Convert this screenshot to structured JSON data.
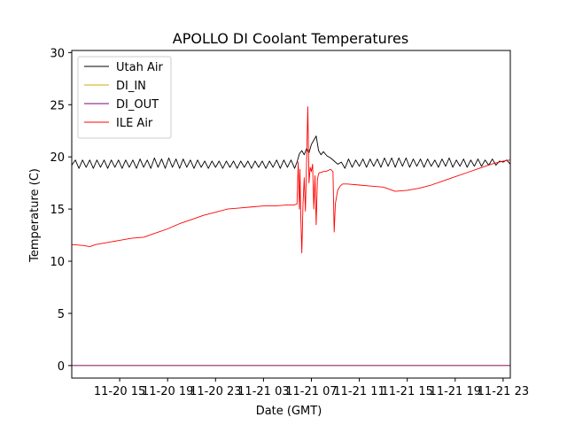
{
  "chart_data": {
    "type": "line",
    "title": "APOLLO DI Coolant Temperatures",
    "xlabel": "Date (GMT)",
    "ylabel": "Temperature (C)",
    "x_unit": "hours since 11-20 11:00 GMT",
    "xlim": [
      0,
      36.6
    ],
    "ylim": [
      -1.2,
      30.2
    ],
    "x_ticks": [
      {
        "value": 4,
        "label": "11-20 15"
      },
      {
        "value": 8,
        "label": "11-20 19"
      },
      {
        "value": 12,
        "label": "11-20 23"
      },
      {
        "value": 16,
        "label": "11-21 03"
      },
      {
        "value": 20,
        "label": "11-21 07"
      },
      {
        "value": 24,
        "label": "11-21 11"
      },
      {
        "value": 28,
        "label": "11-21 15"
      },
      {
        "value": 32,
        "label": "11-21 19"
      },
      {
        "value": 36,
        "label": "11-21 23"
      }
    ],
    "y_ticks": [
      {
        "value": 0,
        "label": "0"
      },
      {
        "value": 5,
        "label": "5"
      },
      {
        "value": 10,
        "label": "10"
      },
      {
        "value": 15,
        "label": "15"
      },
      {
        "value": 20,
        "label": "20"
      },
      {
        "value": 25,
        "label": "25"
      },
      {
        "value": 30,
        "label": "30"
      }
    ],
    "legend_position": "top-left",
    "grid": false,
    "series": [
      {
        "name": "Utah Air",
        "color": "#000000",
        "x": [
          0,
          0.3,
          0.6,
          0.9,
          1.2,
          1.5,
          1.8,
          2.1,
          2.4,
          2.7,
          3.0,
          3.3,
          3.6,
          3.9,
          4.2,
          4.5,
          4.8,
          5.1,
          5.4,
          5.7,
          6.0,
          6.3,
          6.6,
          6.9,
          7.2,
          7.5,
          7.8,
          8.1,
          8.4,
          8.7,
          9.0,
          9.3,
          9.6,
          9.9,
          10.2,
          10.5,
          10.8,
          11.1,
          11.4,
          11.7,
          12.0,
          12.3,
          12.6,
          12.9,
          13.2,
          13.5,
          13.8,
          14.1,
          14.4,
          14.7,
          15.0,
          15.3,
          15.6,
          15.9,
          16.2,
          16.5,
          16.8,
          17.1,
          17.4,
          17.7,
          18.0,
          18.3,
          18.6,
          18.8,
          19.0,
          19.2,
          19.4,
          19.6,
          19.8,
          20.0,
          20.2,
          20.4,
          20.6,
          20.8,
          21.0,
          21.3,
          21.6,
          21.9,
          22.2,
          22.5,
          22.8,
          23.1,
          23.4,
          23.7,
          24.0,
          24.3,
          24.6,
          24.9,
          25.2,
          25.5,
          25.8,
          26.1,
          26.4,
          26.7,
          27.0,
          27.3,
          27.6,
          27.9,
          28.2,
          28.5,
          28.8,
          29.1,
          29.4,
          29.7,
          30.0,
          30.3,
          30.6,
          30.9,
          31.2,
          31.5,
          31.8,
          32.1,
          32.4,
          32.7,
          33.0,
          33.3,
          33.6,
          33.9,
          34.2,
          34.5,
          34.8,
          35.1,
          35.4,
          35.7,
          36.0,
          36.3,
          36.6
        ],
        "y": [
          19.2,
          19.7,
          18.9,
          19.7,
          19.0,
          19.7,
          18.9,
          19.7,
          19.0,
          19.7,
          18.9,
          19.7,
          19.0,
          19.7,
          18.9,
          19.7,
          19.0,
          19.7,
          18.9,
          19.8,
          19.0,
          19.7,
          18.9,
          19.9,
          19.0,
          19.8,
          18.9,
          19.9,
          19.0,
          19.8,
          18.9,
          19.8,
          19.0,
          19.7,
          18.9,
          19.7,
          19.0,
          19.6,
          18.9,
          19.6,
          19.0,
          19.6,
          18.9,
          19.6,
          19.0,
          19.6,
          18.9,
          19.6,
          19.0,
          19.6,
          18.9,
          19.6,
          19.0,
          19.6,
          18.9,
          19.6,
          19.0,
          19.7,
          18.9,
          19.7,
          19.0,
          19.7,
          18.9,
          19.5,
          20.3,
          20.6,
          20.2,
          20.8,
          20.4,
          21.2,
          21.6,
          22.0,
          20.6,
          20.2,
          20.5,
          20.1,
          19.9,
          19.6,
          19.3,
          19.5,
          18.9,
          19.8,
          19.0,
          19.7,
          19.1,
          19.8,
          19.0,
          19.8,
          19.1,
          19.8,
          19.0,
          19.9,
          19.1,
          19.9,
          19.0,
          19.9,
          19.1,
          19.9,
          19.0,
          19.8,
          19.1,
          19.8,
          19.0,
          19.8,
          19.1,
          19.7,
          19.0,
          19.8,
          19.1,
          19.9,
          19.0,
          19.7,
          19.1,
          19.8,
          19.0,
          19.7,
          19.1,
          19.8,
          19.1,
          19.7,
          19.2,
          19.8,
          19.2,
          19.6,
          19.5,
          19.7,
          19.3
        ]
      },
      {
        "name": "DI_IN",
        "color": "#d4aa00",
        "x": [
          0,
          36.6
        ],
        "y": [
          0,
          0
        ]
      },
      {
        "name": "DI_OUT",
        "color": "#800080",
        "x": [
          0,
          36.6
        ],
        "y": [
          0,
          0
        ]
      },
      {
        "name": "ILE Air",
        "color": "#ff0000",
        "x": [
          0,
          1,
          1.5,
          2,
          3,
          4,
          5,
          6,
          7,
          8,
          9,
          10,
          11,
          12,
          13,
          14,
          15,
          16,
          17,
          18,
          18.6,
          18.8,
          18.9,
          19.0,
          19.05,
          19.1,
          19.2,
          19.3,
          19.4,
          19.5,
          19.6,
          19.7,
          19.8,
          19.9,
          20.0,
          20.1,
          20.2,
          20.3,
          20.4,
          20.5,
          20.6,
          20.7,
          20.8,
          21.0,
          21.2,
          21.4,
          21.6,
          21.8,
          21.9,
          22.0,
          22.1,
          22.2,
          22.4,
          22.6,
          22.8,
          23,
          24,
          25,
          26,
          27,
          28,
          29,
          30,
          31,
          32,
          33,
          34,
          35,
          36,
          36.6
        ],
        "y": [
          11.6,
          11.5,
          11.4,
          11.6,
          11.8,
          12.0,
          12.2,
          12.3,
          12.7,
          13.1,
          13.6,
          14.0,
          14.4,
          14.7,
          15.0,
          15.1,
          15.2,
          15.3,
          15.3,
          15.4,
          15.4,
          15.5,
          19.5,
          15.0,
          18.8,
          14.9,
          10.8,
          15.5,
          18.0,
          14.8,
          19.5,
          24.8,
          17.5,
          19.0,
          18.6,
          19.3,
          15.0,
          18.2,
          13.5,
          17.8,
          18.4,
          18.5,
          18.5,
          18.6,
          18.6,
          18.7,
          18.8,
          18.6,
          12.8,
          15.5,
          16.2,
          16.8,
          17.2,
          17.4,
          17.4,
          17.4,
          17.3,
          17.2,
          17.1,
          16.7,
          16.8,
          17.0,
          17.3,
          17.7,
          18.1,
          18.5,
          18.9,
          19.3,
          19.6,
          19.7
        ]
      }
    ]
  }
}
